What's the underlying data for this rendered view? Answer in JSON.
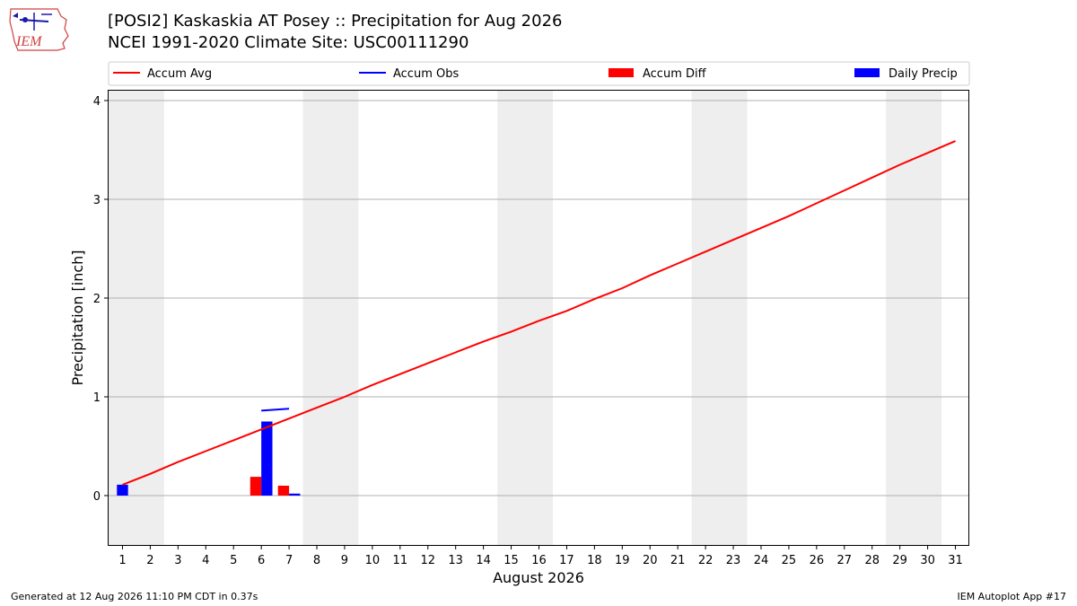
{
  "header": {
    "title_line1": "[POSI2] Kaskaskia  AT Posey :: Precipitation for Aug 2026",
    "title_line2": "NCEI 1991-2020 Climate Site: USC00111290"
  },
  "logo": {
    "text": "IEM"
  },
  "footer": {
    "left": "Generated at 12 Aug 2026 11:10 PM CDT in 0.37s",
    "right": "IEM Autoplot App #17"
  },
  "chart_data": {
    "type": "bar",
    "xlabel": "August 2026",
    "ylabel": "Precipitation [inch]",
    "xlim": [
      0.5,
      31.5
    ],
    "ylim": [
      -0.5,
      4.1
    ],
    "x_ticks": [
      1,
      2,
      3,
      4,
      5,
      6,
      7,
      8,
      9,
      10,
      11,
      12,
      13,
      14,
      15,
      16,
      17,
      18,
      19,
      20,
      21,
      22,
      23,
      24,
      25,
      26,
      27,
      28,
      29,
      30,
      31
    ],
    "y_ticks": [
      0,
      1,
      2,
      3,
      4
    ],
    "grid": "y",
    "legend_placement": "top",
    "weekend_shading": [
      [
        0.5,
        2.5
      ],
      [
        7.5,
        9.5
      ],
      [
        14.5,
        16.5
      ],
      [
        21.5,
        23.5
      ],
      [
        28.5,
        30.5
      ]
    ],
    "colors": {
      "accum_avg": "#ff0000",
      "accum_obs": "#0000ff",
      "accum_diff": "#ff0000",
      "daily_precip": "#0000ff",
      "shading": "#eeeeee",
      "grid": "#b0b0b0"
    },
    "series": [
      {
        "name": "Accum Avg",
        "type": "line",
        "x": [
          1,
          2,
          3,
          4,
          5,
          6,
          7,
          8,
          9,
          10,
          11,
          12,
          13,
          14,
          15,
          16,
          17,
          18,
          19,
          20,
          21,
          22,
          23,
          24,
          25,
          26,
          27,
          28,
          29,
          30,
          31
        ],
        "values": [
          0.11,
          0.22,
          0.34,
          0.45,
          0.56,
          0.67,
          0.78,
          0.89,
          1.0,
          1.12,
          1.23,
          1.34,
          1.45,
          1.56,
          1.66,
          1.77,
          1.87,
          1.99,
          2.1,
          2.23,
          2.35,
          2.47,
          2.59,
          2.71,
          2.83,
          2.96,
          3.09,
          3.22,
          3.35,
          3.47,
          3.59
        ]
      },
      {
        "name": "Accum Obs",
        "type": "line",
        "x": [
          6,
          7
        ],
        "values": [
          0.86,
          0.88
        ]
      },
      {
        "name": "Accum Diff",
        "type": "bar",
        "x": [
          6,
          7
        ],
        "values": [
          0.19,
          0.1
        ]
      },
      {
        "name": "Daily Precip",
        "type": "bar",
        "x": [
          1,
          6,
          7
        ],
        "values": [
          0.11,
          0.75,
          0.02
        ]
      }
    ]
  }
}
